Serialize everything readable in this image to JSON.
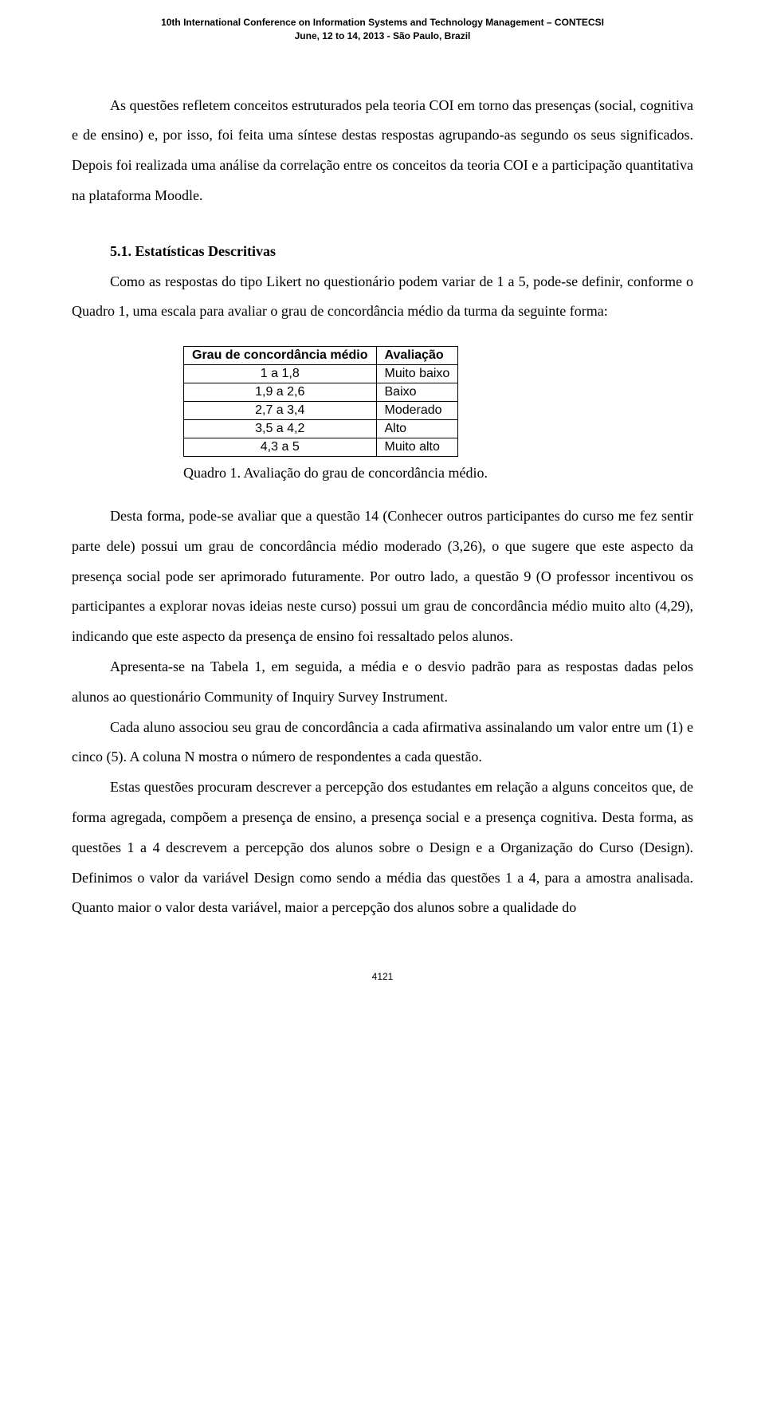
{
  "header": {
    "line1": "10th International Conference on Information Systems and Technology Management – CONTECSI",
    "line2": "June, 12 to 14, 2013 - São Paulo, Brazil"
  },
  "paragraphs": {
    "p1": "As questões refletem conceitos estruturados pela teoria COI em torno das presenças (social, cognitiva e de ensino) e, por isso, foi feita uma síntese destas respostas agrupando-as segundo os seus significados. Depois foi realizada uma análise da correlação entre os conceitos da teoria COI e a participação quantitativa na plataforma Moodle."
  },
  "section": {
    "number_title": "5.1. Estatísticas Descritivas",
    "intro": "Como as respostas do tipo Likert no questionário podem variar de 1 a 5, pode-se definir, conforme o Quadro 1, uma escala para avaliar o grau de concordância médio da turma da seguinte forma:"
  },
  "table": {
    "col1_header": "Grau de concordância médio",
    "col2_header": "Avaliação",
    "rows": [
      {
        "range": "1 a 1,8",
        "label": "Muito baixo"
      },
      {
        "range": "1,9 a 2,6",
        "label": "Baixo"
      },
      {
        "range": "2,7 a 3,4",
        "label": "Moderado"
      },
      {
        "range": "3,5 a 4,2",
        "label": "Alto"
      },
      {
        "range": "4,3 a 5",
        "label": "Muito alto"
      }
    ],
    "caption": "Quadro 1. Avaliação do grau de concordância médio."
  },
  "after_table": {
    "p2": "Desta forma, pode-se avaliar que a questão 14 (Conhecer outros participantes do curso me fez sentir parte dele) possui um grau de concordância médio moderado (3,26), o que sugere que este aspecto da presença social pode ser aprimorado futuramente. Por outro lado, a questão 9 (O professor incentivou os participantes a explorar novas ideias neste curso) possui um grau de concordância médio muito alto (4,29), indicando que este aspecto da presença de ensino foi ressaltado pelos alunos.",
    "p3": "Apresenta-se na Tabela 1, em seguida, a média e o desvio padrão para as respostas dadas pelos alunos ao questionário Community of Inquiry Survey Instrument.",
    "p4": "Cada aluno associou seu grau de concordância a cada afirmativa assinalando um valor entre um (1) e cinco (5). A coluna N mostra o número de respondentes a cada questão.",
    "p5": "Estas questões procuram descrever a percepção dos estudantes em relação a alguns conceitos que, de forma agregada, compõem a presença de ensino, a presença social e a presença cognitiva. Desta forma, as questões 1 a 4 descrevem a percepção dos alunos sobre o Design e a Organização do Curso (Design). Definimos o valor da variável Design como sendo a média das questões 1 a 4, para a amostra analisada. Quanto maior o valor desta variável, maior a percepção dos alunos sobre a qualidade do"
  },
  "page_number": "4121",
  "colors": {
    "text": "#000000",
    "background": "#ffffff",
    "border": "#000000"
  }
}
